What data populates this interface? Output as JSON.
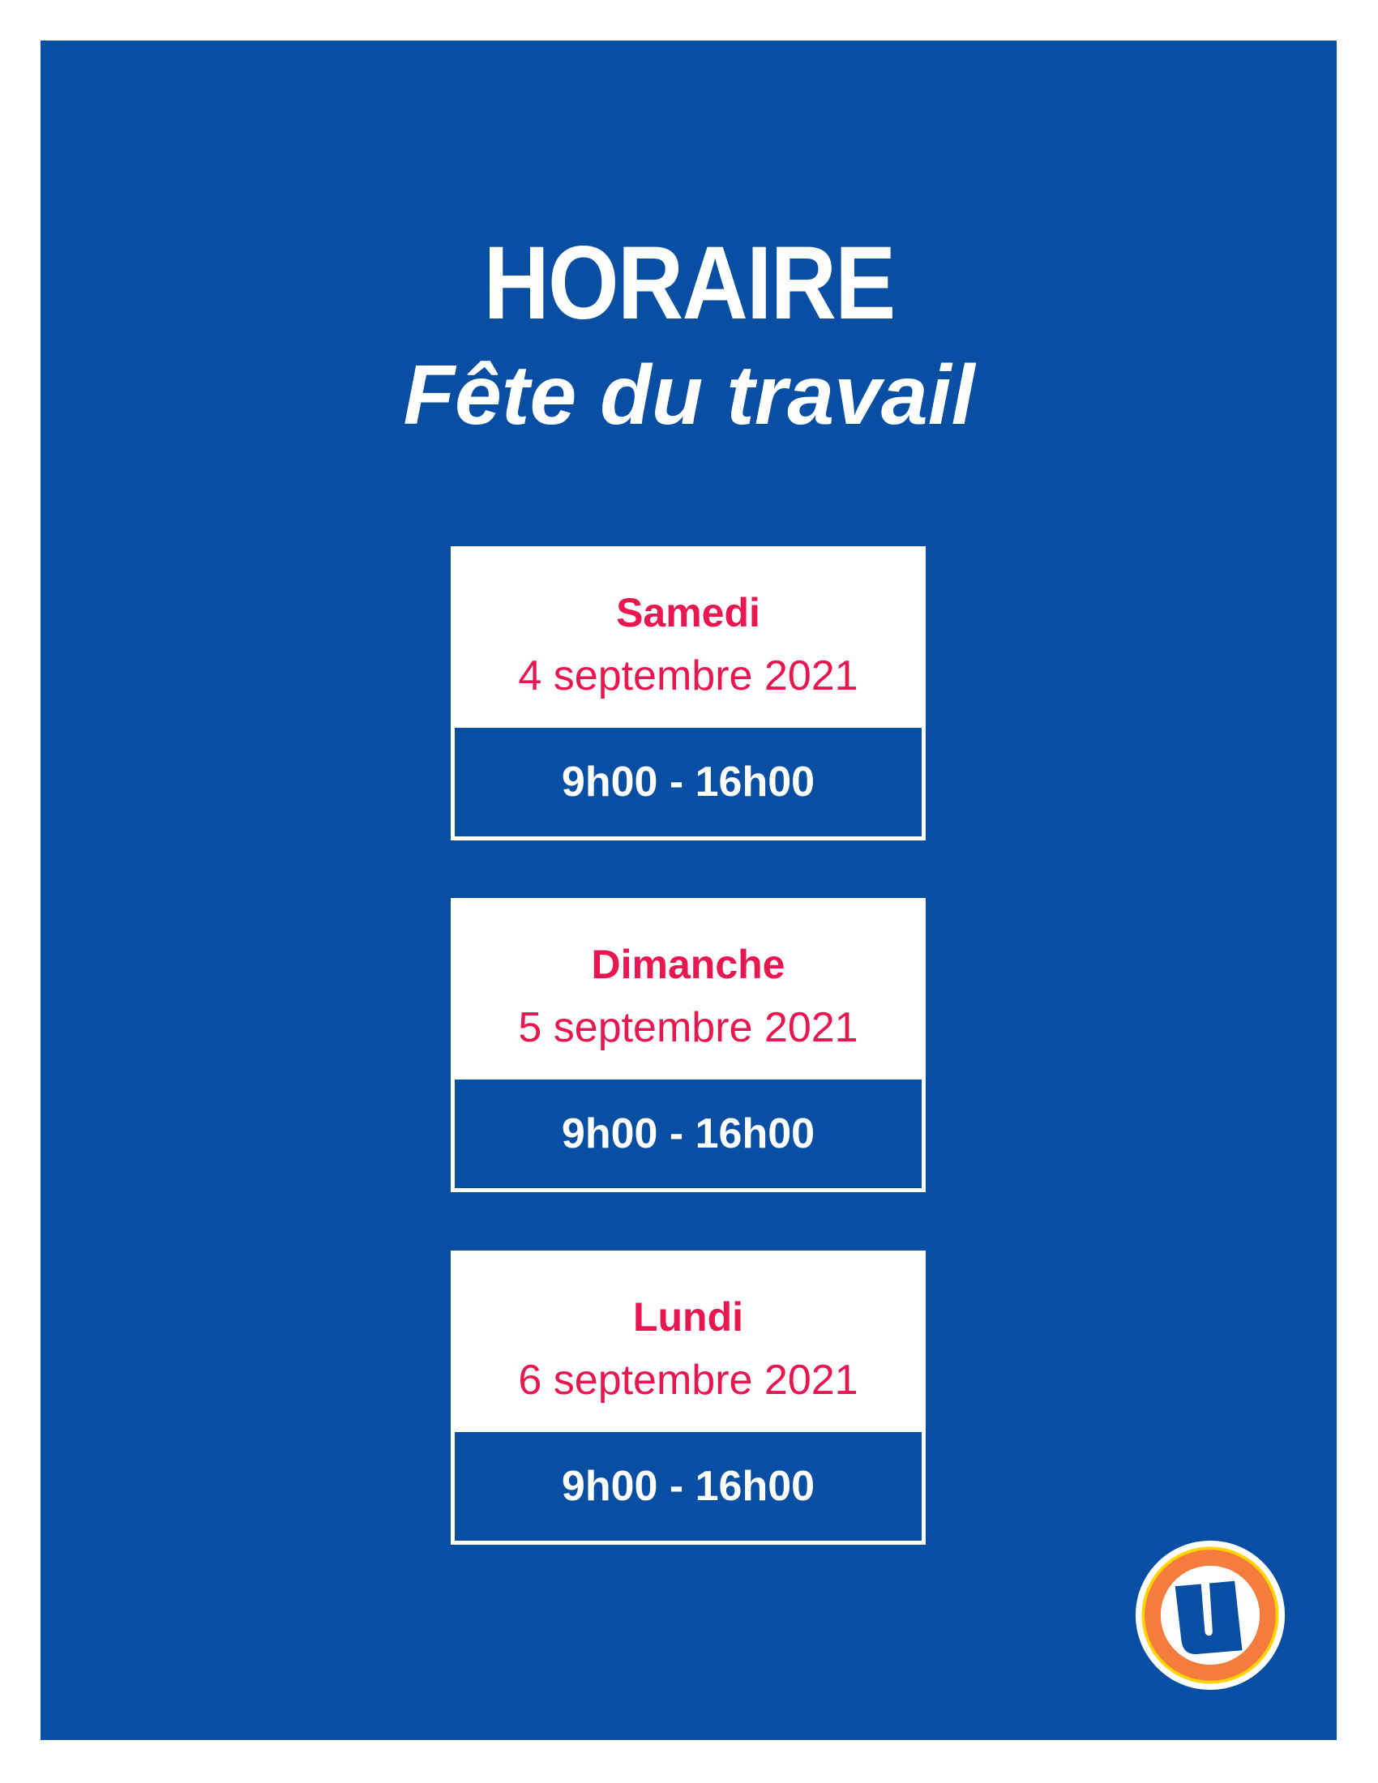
{
  "header": {
    "title": "HORAIRE",
    "subtitle": "Fête du travail"
  },
  "schedule": [
    {
      "day": "Samedi",
      "date": "4 septembre 2021",
      "hours": "9h00 - 16h00"
    },
    {
      "day": "Dimanche",
      "date": "5 septembre 2021",
      "hours": "9h00 - 16h00"
    },
    {
      "day": "Lundi",
      "date": "6 septembre 2021",
      "hours": "9h00 - 16h00"
    }
  ],
  "colors": {
    "background": "#084ea2",
    "accent": "#e8174f",
    "logo_orange": "#f47c3c",
    "logo_yellow": "#ffd400"
  },
  "logo": {
    "icon": "u-logo-icon"
  }
}
